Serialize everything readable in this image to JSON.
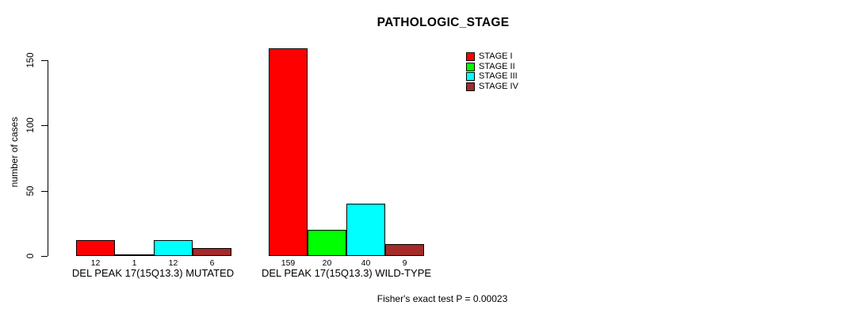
{
  "chart_data": {
    "type": "bar",
    "title": "PATHOLOGIC_STAGE",
    "ylabel": "number of cases",
    "ylim": [
      0,
      159
    ],
    "yticks": [
      0,
      50,
      100,
      150
    ],
    "grid": false,
    "legend_position": "upper-right",
    "bar_value_labels": true,
    "categories": [
      "DEL PEAK 17(15Q13.3) MUTATED",
      "DEL PEAK 17(15Q13.3) WILD-TYPE"
    ],
    "series": [
      {
        "name": "STAGE I",
        "color": "#FF0000",
        "values": [
          12,
          159
        ]
      },
      {
        "name": "STAGE II",
        "color": "#00FF00",
        "values": [
          1,
          20
        ]
      },
      {
        "name": "STAGE III",
        "color": "#00FFFF",
        "values": [
          12,
          40
        ]
      },
      {
        "name": "STAGE IV",
        "color": "#A52A2A",
        "values": [
          6,
          9
        ]
      }
    ],
    "annotation": "Fisher's exact test P = 0.00023"
  },
  "colors": {
    "axis": "#000000",
    "bar_border": "#000000",
    "text": "#000000",
    "background": "#FFFFFF"
  }
}
